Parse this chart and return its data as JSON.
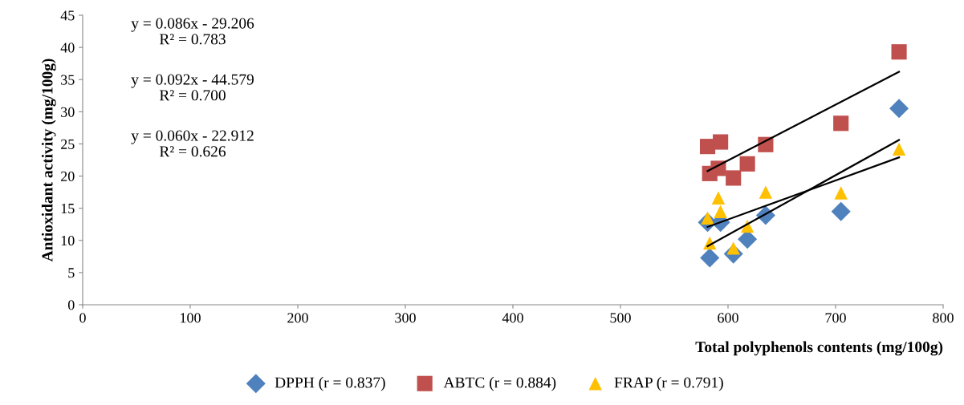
{
  "chart_data": {
    "type": "scatter",
    "xlabel": "Total polyphenols contents (mg/100g)",
    "ylabel": "Antioxidant activity (mg/100g)",
    "xlim": [
      0,
      800
    ],
    "xticks": [
      0,
      100,
      200,
      300,
      400,
      500,
      600,
      700,
      800
    ],
    "ylim": [
      0,
      45
    ],
    "yticks": [
      0,
      5,
      10,
      15,
      20,
      25,
      30,
      35,
      40,
      45
    ],
    "grid": false,
    "legend": "bottom",
    "annotations": [
      "y = 0.086x - 29.206\nR² = 0.783",
      "y = 0.092x - 44.579\nR² = 0.700",
      "y = 0.060x - 22.912\nR² = 0.626"
    ],
    "series": [
      {
        "name": "DPPH (r = 0.837)",
        "color": "#4f81bd",
        "marker": "diamond",
        "x": [
          581,
          593,
          583,
          605,
          618,
          635,
          705,
          759
        ],
        "values": [
          12.8,
          12.8,
          7.3,
          7.9,
          10.2,
          13.9,
          14.5,
          30.5
        ]
      },
      {
        "name": "ABTC (r = 0.884)",
        "color": "#c0504d",
        "marker": "square",
        "x": [
          581,
          593,
          583,
          591,
          605,
          618,
          635,
          705,
          759
        ],
        "values": [
          24.6,
          25.3,
          20.4,
          21.2,
          19.7,
          21.9,
          24.9,
          28.2,
          39.3
        ]
      },
      {
        "name": "FRAP (r = 0.791)",
        "color": "#ffc000",
        "marker": "triangle",
        "x": [
          581,
          591,
          593,
          583,
          605,
          618,
          635,
          705,
          759
        ],
        "values": [
          13.5,
          16.6,
          14.5,
          9.6,
          8.8,
          12.2,
          17.5,
          17.4,
          24.2
        ]
      },
      {
        "type": "line",
        "color": "#000000",
        "x": [
          581,
          759
        ],
        "values": [
          20.8,
          36.2
        ]
      },
      {
        "type": "line",
        "color": "#000000",
        "x": [
          581,
          759
        ],
        "values": [
          9.1,
          25.6
        ]
      },
      {
        "type": "line",
        "color": "#000000",
        "x": [
          581,
          759
        ],
        "values": [
          12.1,
          22.9
        ]
      }
    ]
  }
}
